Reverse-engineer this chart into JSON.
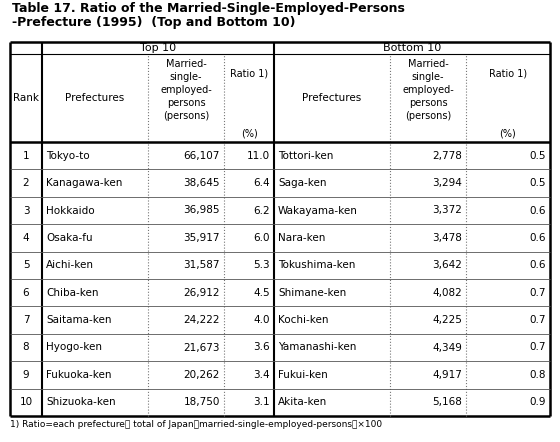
{
  "title_line1": "Table 17. Ratio of the Married-Single-Employed-Persons",
  "title_line2": "-Prefecture (1995)  (Top and Bottom 10)",
  "top10": {
    "ranks": [
      1,
      2,
      3,
      4,
      5,
      6,
      7,
      8,
      9,
      10
    ],
    "prefectures": [
      "Tokyo-to",
      "Kanagawa-ken",
      "Hokkaido",
      "Osaka-fu",
      "Aichi-ken",
      "Chiba-ken",
      "Saitama-ken",
      "Hyogo-ken",
      "Fukuoka-ken",
      "Shizuoka-ken"
    ],
    "persons": [
      "66,107",
      "38,645",
      "36,985",
      "35,917",
      "31,587",
      "26,912",
      "24,222",
      "21,673",
      "20,262",
      "18,750"
    ],
    "ratios": [
      "11.0",
      "6.4",
      "6.2",
      "6.0",
      "5.3",
      "4.5",
      "4.0",
      "3.6",
      "3.4",
      "3.1"
    ]
  },
  "bottom10": {
    "prefectures": [
      "Tottori-ken",
      "Saga-ken",
      "Wakayama-ken",
      "Nara-ken",
      "Tokushima-ken",
      "Shimane-ken",
      "Kochi-ken",
      "Yamanashi-ken",
      "Fukui-ken",
      "Akita-ken"
    ],
    "persons": [
      "2,778",
      "3,294",
      "3,372",
      "3,478",
      "3,642",
      "4,082",
      "4,225",
      "4,349",
      "4,917",
      "5,168"
    ],
    "ratios": [
      "0.5",
      "0.5",
      "0.6",
      "0.6",
      "0.6",
      "0.7",
      "0.7",
      "0.7",
      "0.8",
      "0.9"
    ]
  },
  "footnote": "1) Ratio=each prefecture/ total of Japan (married-single-employed-persons) x100",
  "bg_color": "#ffffff"
}
